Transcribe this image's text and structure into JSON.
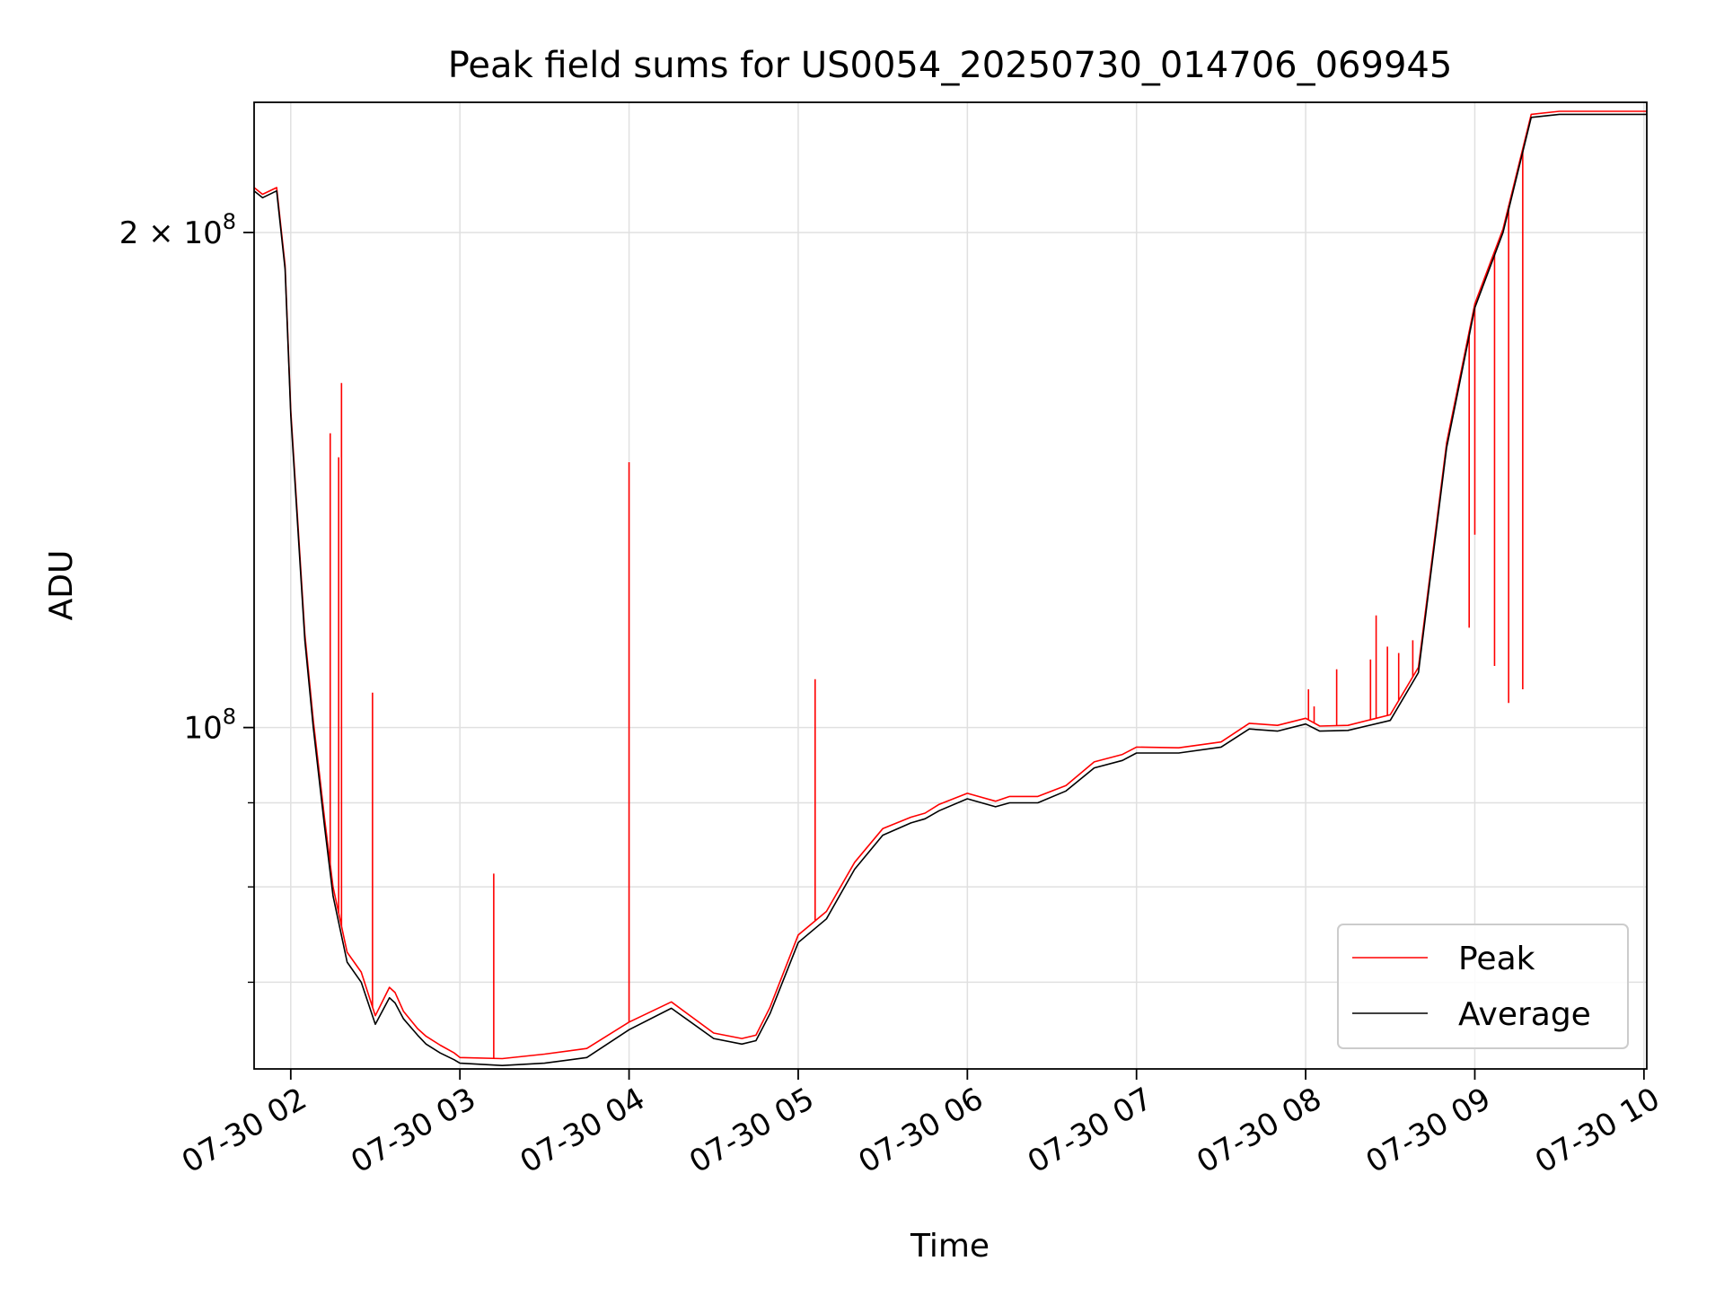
{
  "chart_data": {
    "type": "line",
    "title": "Peak field sums for US0054_20250730_014706_069945",
    "xlabel": "Time",
    "ylabel": "ADU",
    "y_scale": "log",
    "grid": true,
    "legend_placement": "lower-right",
    "xlim": [
      "07-30 01:47",
      "07-30 10:01"
    ],
    "ylim": [
      62000000,
      240000000
    ],
    "x_ticks": [
      "07-30 02",
      "07-30 03",
      "07-30 04",
      "07-30 05",
      "07-30 06",
      "07-30 07",
      "07-30 08",
      "07-30 09",
      "07-30 10"
    ],
    "x_tick_values": [
      "07-30 02:00",
      "07-30 03:00",
      "07-30 04:00",
      "07-30 05:00",
      "07-30 06:00",
      "07-30 07:00",
      "07-30 08:00",
      "07-30 09:00",
      "07-30 10:00"
    ],
    "y_major_ticks": [
      {
        "value": 100000000,
        "base": "10",
        "exp": "8",
        "label": "10^8"
      },
      {
        "value": 200000000,
        "mantissa": "2",
        "base": "10",
        "exp": "8",
        "label": "2×10^8"
      }
    ],
    "y_minor_ticks": [
      70000000,
      80000000,
      90000000
    ],
    "series": [
      {
        "name": "Average",
        "color": "#000000",
        "x": [
          "07-30 01:47",
          "07-30 01:50",
          "07-30 01:55",
          "07-30 01:58",
          "07-30 02:00",
          "07-30 02:05",
          "07-30 02:08",
          "07-30 02:12",
          "07-30 02:15",
          "07-30 02:20",
          "07-30 02:25",
          "07-30 02:30",
          "07-30 02:35",
          "07-30 02:37",
          "07-30 02:40",
          "07-30 02:45",
          "07-30 02:48",
          "07-30 02:53",
          "07-30 02:58",
          "07-30 03:00",
          "07-30 03:15",
          "07-30 03:30",
          "07-30 03:45",
          "07-30 04:00",
          "07-30 04:15",
          "07-30 04:30",
          "07-30 04:40",
          "07-30 04:45",
          "07-30 04:50",
          "07-30 05:00",
          "07-30 05:10",
          "07-30 05:20",
          "07-30 05:30",
          "07-30 05:40",
          "07-30 05:45",
          "07-30 05:50",
          "07-30 06:00",
          "07-30 06:10",
          "07-30 06:15",
          "07-30 06:25",
          "07-30 06:35",
          "07-30 06:45",
          "07-30 06:55",
          "07-30 07:00",
          "07-30 07:15",
          "07-30 07:30",
          "07-30 07:40",
          "07-30 07:50",
          "07-30 08:00",
          "07-30 08:05",
          "07-30 08:15",
          "07-30 08:30",
          "07-30 08:40",
          "07-30 08:50",
          "07-30 09:00",
          "07-30 09:10",
          "07-30 09:20",
          "07-30 09:30",
          "07-30 09:40",
          "07-30 09:45",
          "07-30 09:50",
          "07-30 09:55",
          "07-30 09:58",
          "07-30 10:01"
        ],
        "values": [
          212000000,
          210000000,
          212000000,
          190000000,
          155000000,
          113000000,
          100000000,
          87000000,
          79000000,
          72000000,
          70000000,
          66000000,
          68500000,
          68000000,
          66500000,
          65000000,
          64200000,
          63400000,
          62800000,
          62500000,
          62300000,
          62500000,
          63000000,
          65500000,
          67500000,
          64700000,
          64200000,
          64500000,
          67000000,
          74000000,
          76500000,
          82000000,
          86000000,
          87500000,
          88000000,
          89000000,
          90500000,
          89500000,
          90000000,
          90000000,
          91500000,
          94500000,
          95500000,
          96500000,
          96500000,
          97300000,
          99800000,
          99500000,
          100500000,
          99500000,
          99600000,
          101000000,
          108000000,
          148000000,
          180000000,
          200000000,
          235000000,
          236000000,
          236000000,
          236000000,
          236000000,
          236000000,
          236000000,
          236000000
        ]
      },
      {
        "name": "Peak",
        "color": "#ff0000",
        "x": [
          "07-30 01:47",
          "07-30 01:50",
          "07-30 01:55",
          "07-30 01:58",
          "07-30 02:00",
          "07-30 02:05",
          "07-30 02:08",
          "07-30 02:12",
          "07-30 02:15",
          "07-30 02:20",
          "07-30 02:25",
          "07-30 02:30",
          "07-30 02:35",
          "07-30 02:37",
          "07-30 02:40",
          "07-30 02:45",
          "07-30 02:48",
          "07-30 02:53",
          "07-30 02:58",
          "07-30 03:00",
          "07-30 03:15",
          "07-30 03:30",
          "07-30 03:45",
          "07-30 04:00",
          "07-30 04:15",
          "07-30 04:30",
          "07-30 04:40",
          "07-30 04:45",
          "07-30 04:50",
          "07-30 05:00",
          "07-30 05:10",
          "07-30 05:20",
          "07-30 05:30",
          "07-30 05:40",
          "07-30 05:45",
          "07-30 05:50",
          "07-30 06:00",
          "07-30 06:10",
          "07-30 06:15",
          "07-30 06:25",
          "07-30 06:35",
          "07-30 06:45",
          "07-30 06:55",
          "07-30 07:00",
          "07-30 07:15",
          "07-30 07:30",
          "07-30 07:40",
          "07-30 07:50",
          "07-30 08:00",
          "07-30 08:05",
          "07-30 08:15",
          "07-30 08:30",
          "07-30 08:40",
          "07-30 08:50",
          "07-30 09:00",
          "07-30 09:10",
          "07-30 09:20",
          "07-30 09:30",
          "07-30 09:40",
          "07-30 09:45",
          "07-30 09:50",
          "07-30 09:55",
          "07-30 09:58",
          "07-30 10:01"
        ],
        "values": [
          213000000,
          211000000,
          213000000,
          191000000,
          156000000,
          114000000,
          101000000,
          88000000,
          80000000,
          73000000,
          71000000,
          66800000,
          69500000,
          69000000,
          67200000,
          65600000,
          64900000,
          64100000,
          63400000,
          63000000,
          62900000,
          63300000,
          63800000,
          66200000,
          68100000,
          65200000,
          64700000,
          65000000,
          67600000,
          74800000,
          77300000,
          82800000,
          86800000,
          88200000,
          88700000,
          89800000,
          91200000,
          90200000,
          90800000,
          90800000,
          92200000,
          95300000,
          96300000,
          97300000,
          97200000,
          98000000,
          100600000,
          100300000,
          101300000,
          100200000,
          100300000,
          101800000,
          108800000,
          149000000,
          181000000,
          201000000,
          236000000,
          237000000,
          237000000,
          237000000,
          237000000,
          237000000,
          237000000,
          237000000
        ],
        "spikes": [
          {
            "x": "07-30 02:14",
            "y": 151000000
          },
          {
            "x": "07-30 02:17",
            "y": 146000000
          },
          {
            "x": "07-30 02:18",
            "y": 162000000
          },
          {
            "x": "07-30 02:29",
            "y": 105000000
          },
          {
            "x": "07-30 03:12",
            "y": 81500000
          },
          {
            "x": "07-30 04:00",
            "y": 145000000
          },
          {
            "x": "07-30 05:06",
            "y": 107000000
          },
          {
            "x": "07-30 08:01",
            "y": 105500000
          },
          {
            "x": "07-30 08:03",
            "y": 103000000
          },
          {
            "x": "07-30 08:11",
            "y": 108500000
          },
          {
            "x": "07-30 08:23",
            "y": 110000000
          },
          {
            "x": "07-30 08:25",
            "y": 117000000
          },
          {
            "x": "07-30 08:29",
            "y": 112000000
          },
          {
            "x": "07-30 08:33",
            "y": 111000000
          },
          {
            "x": "07-30 08:38",
            "y": 113000000
          },
          {
            "x": "07-30 08:58",
            "y": 115000000
          },
          {
            "x": "07-30 09:00",
            "y": 131000000
          },
          {
            "x": "07-30 09:07",
            "y": 109000000
          },
          {
            "x": "07-30 09:12",
            "y": 103500000
          },
          {
            "x": "07-30 09:17",
            "y": 105500000
          }
        ]
      }
    ]
  }
}
